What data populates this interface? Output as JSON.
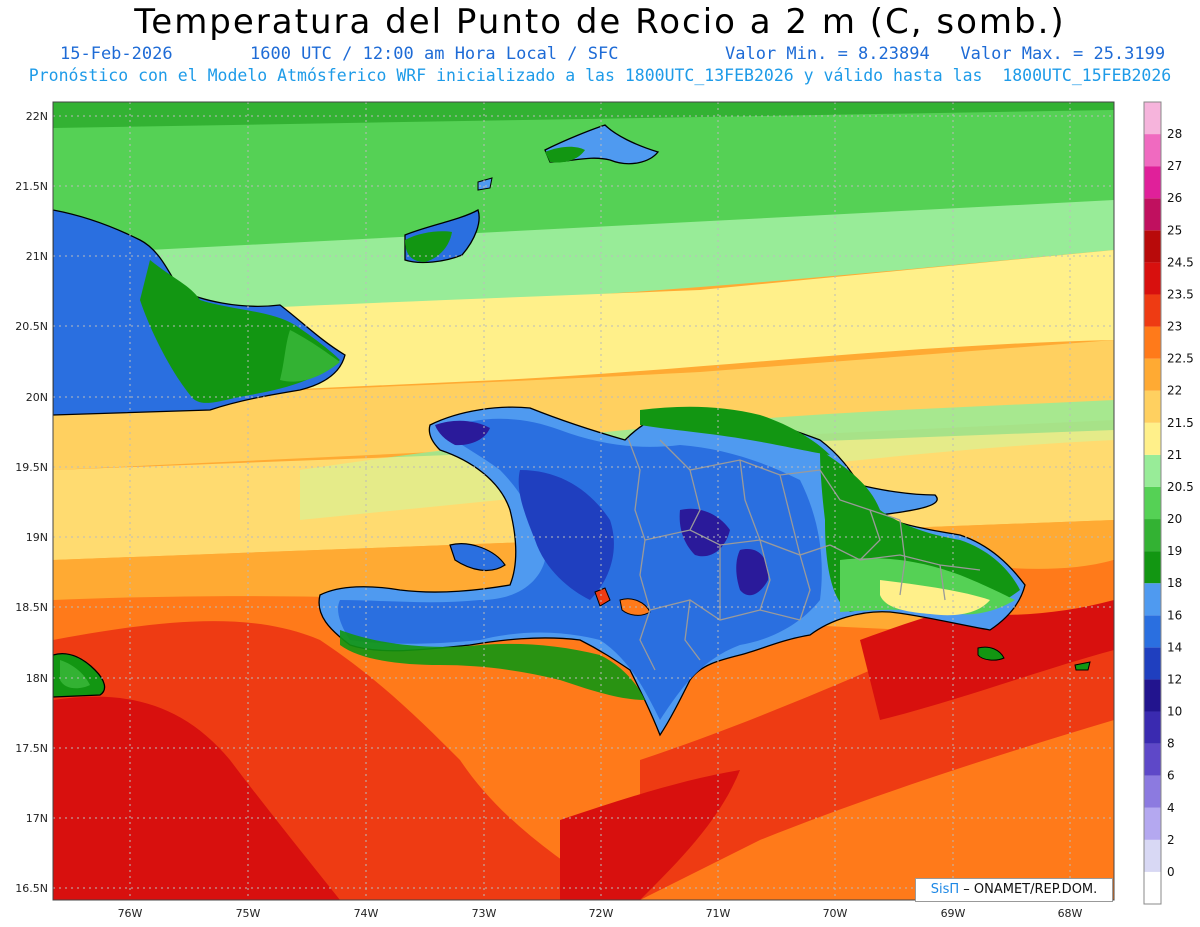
{
  "header": {
    "title": "Temperatura del Punto de Rocio a 2 m (C, somb.)",
    "date": "15-Feb-2026",
    "time": "1600 UTC / 12:00 am Hora Local / SFC",
    "minmax": "Valor Min. = 8.23894   Valor Max. = 25.3199",
    "model": "Pronóstico con el Modelo Atmósferico WRF inicializado a las 1800UTC_13FEB2026 y válido hasta las  1800UTC_15FEB2026"
  },
  "axes": {
    "lat_labels": [
      "22N",
      "21.5N",
      "21N",
      "20.5N",
      "20N",
      "19.5N",
      "19N",
      "18.5N",
      "18N",
      "17.5N",
      "17N",
      "16.5N"
    ],
    "lon_labels": [
      "76W",
      "75W",
      "74W",
      "73W",
      "72W",
      "71W",
      "70W",
      "69W",
      "68W"
    ]
  },
  "colorbar": {
    "levels": [
      "0",
      "2",
      "4",
      "6",
      "8",
      "10",
      "12",
      "14",
      "16",
      "18",
      "19",
      "20",
      "20.5",
      "21",
      "21.5",
      "22",
      "22.5",
      "23",
      "23.5",
      "24.5",
      "25",
      "26",
      "27",
      "28"
    ],
    "colors": [
      "#ffffff",
      "#d8d8f4",
      "#b4a8f0",
      "#8c7ae0",
      "#5e48c8",
      "#3a2ab0",
      "#22148e",
      "#1f3fbf",
      "#2a6fe0",
      "#4f9af0",
      "#129612",
      "#33b233",
      "#55d155",
      "#98ec98",
      "#fff08a",
      "#ffd060",
      "#ffaa33",
      "#ff7a1a",
      "#ee3b13",
      "#d8100e",
      "#b80a0a",
      "#c0105f",
      "#e0209a",
      "#f06ac0",
      "#f6b4dc"
    ]
  },
  "credit": {
    "brand": "SisΠ",
    "text": " – ONAMET/REP.DOM."
  },
  "palette": {
    "deep_blue": "#1f3fbf",
    "blue": "#2a6fe0",
    "light_blue": "#4f9af0",
    "dark_green": "#129612",
    "green": "#33b233",
    "light_green": "#55d155",
    "pale_green": "#98ec98",
    "yellow": "#fff08a",
    "light_orange": "#ffd060",
    "orange": "#ffaa33",
    "dark_orange": "#ff7a1a",
    "red": "#ee3b13",
    "dark_red": "#d8100e",
    "purple": "#2a1a9a",
    "grid": "#cccccc",
    "coast": "#000000",
    "border": "#9a9a9a"
  }
}
